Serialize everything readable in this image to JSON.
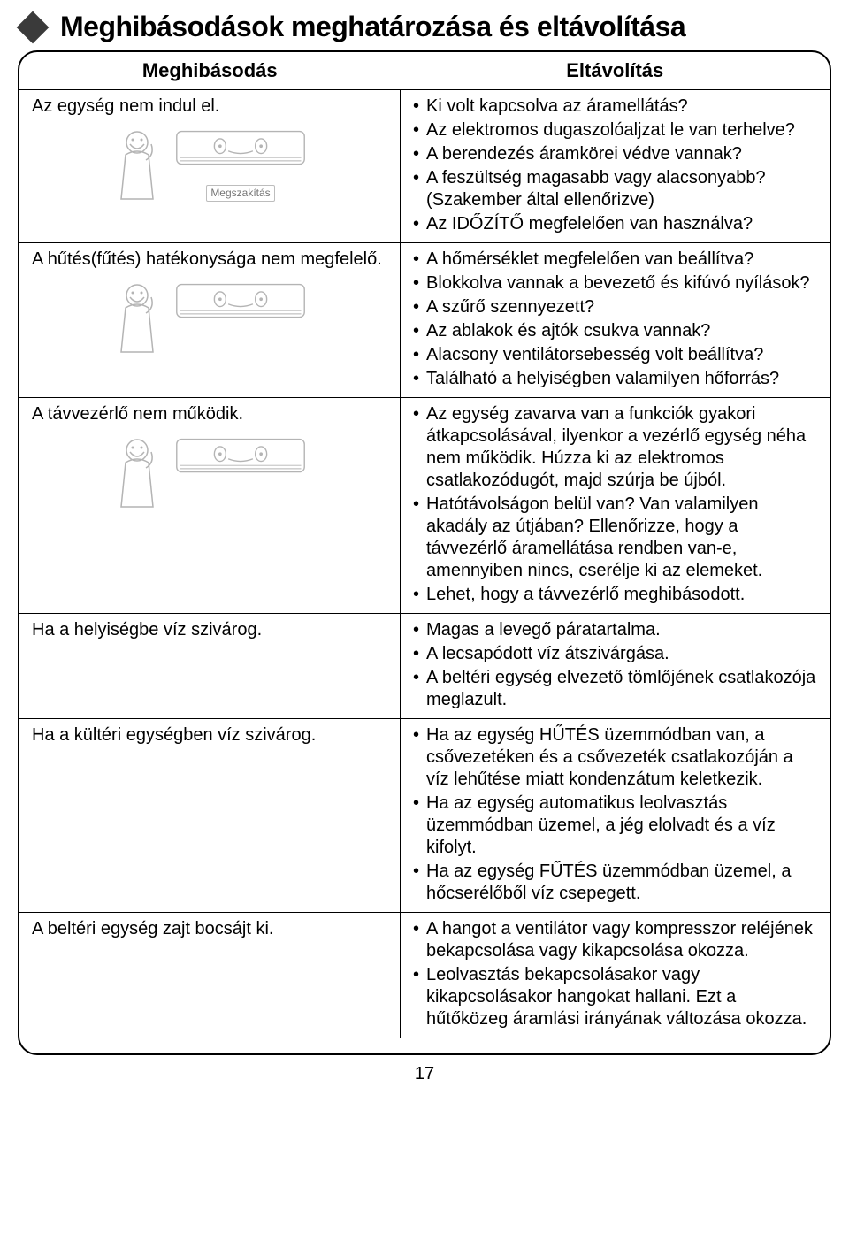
{
  "title": "Meghibásodások meghatározása és eltávolítása",
  "headers": {
    "left": "Meghibásodás",
    "right": "Eltávolítás"
  },
  "illust_caption": "Megszakítás",
  "page_number": "17",
  "rows": [
    {
      "fault": "Az egység nem indul el.",
      "has_illust": true,
      "fixes": [
        "Ki volt kapcsolva az áramellátás?",
        "Az elektromos dugaszolóaljzat le van terhelve?",
        "A berendezés áramkörei védve vannak?",
        "A feszültség magasabb vagy alacsonyabb? (Szakember által ellenőrizve)",
        "Az IDŐZÍTŐ megfelelően van használva?"
      ]
    },
    {
      "fault": "A hűtés(fűtés) hatékonysága nem megfelelő.",
      "has_illust": true,
      "fixes": [
        "A hőmérséklet megfelelően van beállítva?",
        "Blokkolva vannak a bevezető és kifúvó nyílások?",
        "A szűrő szennyezett?",
        "Az ablakok és ajtók csukva vannak?",
        "Alacsony ventilátorsebesség volt beállítva?",
        "Található a helyiségben valamilyen hőforrás?"
      ]
    },
    {
      "fault": "A távvezérlő nem működik.",
      "has_illust": true,
      "fixes": [
        "Az egység zavarva van a funkciók gyakori átkapcsolásával, ilyenkor a vezérlő egység néha nem működik. Húzza ki az elektromos csatlakozódugót, majd szúrja be újból.",
        "Hatótávolságon belül van? Van valamilyen akadály az útjában? Ellenőrizze, hogy a távvezérlő áramellátása rendben van-e, amennyiben nincs, cserélje ki az elemeket.",
        "Lehet, hogy a távvezérlő meghibásodott."
      ]
    },
    {
      "fault": "Ha a helyiségbe víz szivárog.",
      "has_illust": false,
      "fixes": [
        "Magas a levegő páratartalma.",
        "A lecsapódott víz átszivárgása.",
        "A beltéri egység elvezető tömlőjének csatlakozója meglazult."
      ]
    },
    {
      "fault": "Ha a kültéri egységben víz szivárog.",
      "has_illust": false,
      "fixes": [
        "Ha az egység HŰTÉS üzemmódban van, a csővezetéken és a csővezeték csatlakozóján a víz lehűtése miatt kondenzátum keletkezik.",
        "Ha az egység automatikus leolvasztás üzemmódban üzemel, a jég elolvadt és a víz kifolyt.",
        "Ha az egység FŰTÉS üzemmódban üzemel, a hőcserélőből víz csepegett."
      ]
    },
    {
      "fault": "A beltéri egység zajt bocsájt ki.",
      "has_illust": false,
      "fixes": [
        "A hangot a ventilátor vagy kompresszor reléjének bekapcsolása vagy kikapcsolása okozza.",
        "Leolvasztás bekapcsolásakor vagy kikapcsolásakor hangokat hallani. Ezt a hűtőközeg áramlási irányának változása okozza."
      ]
    }
  ]
}
